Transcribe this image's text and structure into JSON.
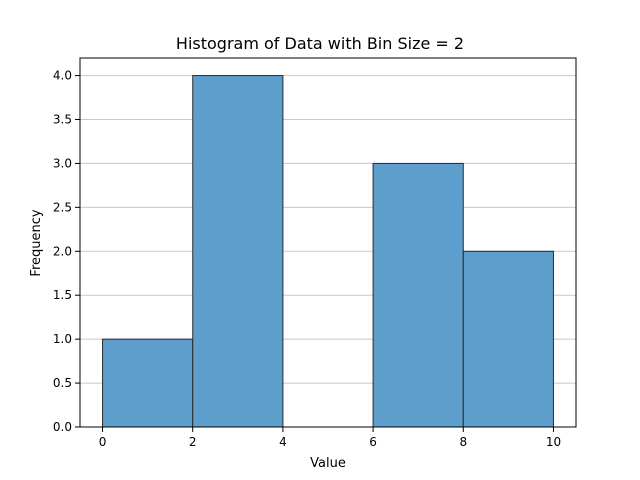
{
  "chart_data": {
    "type": "bar",
    "subtype": "histogram",
    "title": "Histogram of Data with Bin Size = 2",
    "xlabel": "Value",
    "ylabel": "Frequency",
    "bins": [
      {
        "start": 0,
        "end": 2,
        "count": 1.0
      },
      {
        "start": 2,
        "end": 4,
        "count": 4.0
      },
      {
        "start": 4,
        "end": 6,
        "count": 0.0
      },
      {
        "start": 6,
        "end": 8,
        "count": 3.0
      },
      {
        "start": 8,
        "end": 10,
        "count": 2.0
      }
    ],
    "xlim": [
      -0.5,
      10.5
    ],
    "ylim": [
      0,
      4.2
    ],
    "xticks": [
      0,
      2,
      4,
      6,
      8,
      10
    ],
    "xtick_labels": [
      "0",
      "2",
      "4",
      "6",
      "8",
      "10"
    ],
    "yticks": [
      0,
      0.5,
      1.0,
      1.5,
      2.0,
      2.5,
      3.0,
      3.5,
      4.0
    ],
    "ytick_labels": [
      "0.0",
      "0.5",
      "1.0",
      "1.5",
      "2.0",
      "2.5",
      "3.0",
      "3.5",
      "4.0"
    ],
    "grid": "y-axis",
    "colors": {
      "bar_fill": "#5e9ecc",
      "bar_edge": "#2a2a2a",
      "grid": "#c8c8c8",
      "axes": "#000000"
    }
  }
}
